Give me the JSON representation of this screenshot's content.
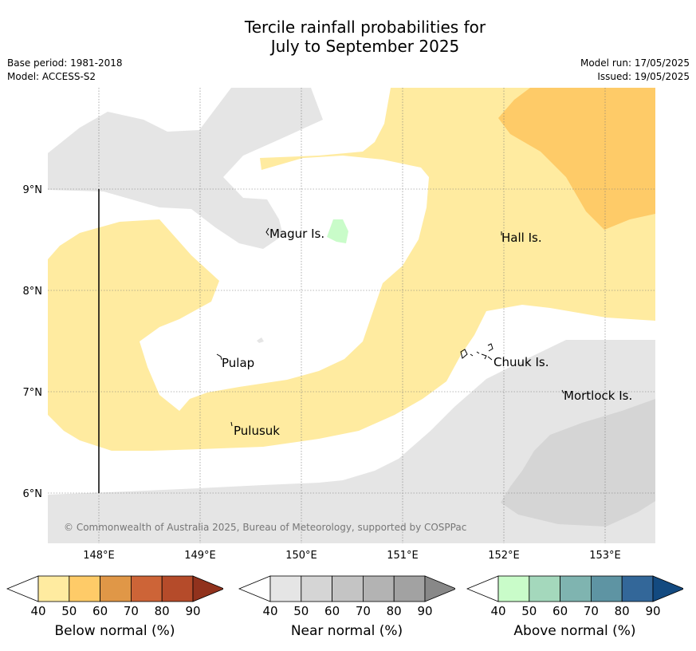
{
  "title_line1": "Tercile rainfall probabilities for",
  "title_line2": "July to September 2025",
  "meta": {
    "base_period": "Base period: 1981-2018",
    "model": "Model: ACCESS-S2",
    "model_run": "Model run: 17/05/2025",
    "issued": "Issued: 19/05/2025"
  },
  "map": {
    "lon_labels": [
      "148°E",
      "149°E",
      "150°E",
      "151°E",
      "152°E",
      "153°E"
    ],
    "lat_labels": [
      "9°N",
      "8°N",
      "7°N",
      "6°N"
    ],
    "places": [
      "Magur Is.",
      "Hall Is.",
      "Pulap",
      "Chuuk Is.",
      "Mortlock Is.",
      "Pulusuk"
    ],
    "copyright": "© Commonwealth of Australia 2025, Bureau of Meteorology, supported by COSPPac"
  },
  "legends": [
    {
      "label": "Below normal (%)",
      "ticks": [
        "40",
        "50",
        "60",
        "70",
        "80",
        "90"
      ],
      "colors": [
        "#ffeba0",
        "#fecb68",
        "#e09747",
        "#cd6437",
        "#b54b2a",
        "#91321d"
      ]
    },
    {
      "label": "Near normal (%)",
      "ticks": [
        "40",
        "50",
        "60",
        "70",
        "80",
        "90"
      ],
      "colors": [
        "#e5e5e5",
        "#d5d5d5",
        "#c4c4c4",
        "#b3b3b3",
        "#a2a2a2",
        "#888888"
      ]
    },
    {
      "label": "Above normal (%)",
      "ticks": [
        "40",
        "50",
        "60",
        "70",
        "80",
        "90"
      ],
      "colors": [
        "#c9fcc9",
        "#a4d8bc",
        "#7fb4b0",
        "#5e94a3",
        "#336799",
        "#134a80"
      ]
    }
  ]
}
